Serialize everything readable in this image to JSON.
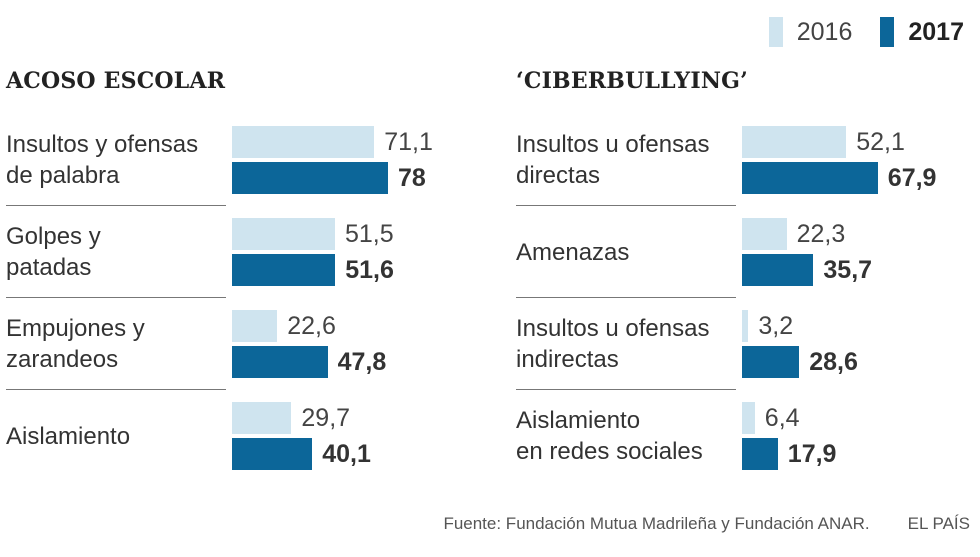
{
  "legend": [
    {
      "label": "2016",
      "color": "#cfe4ef"
    },
    {
      "label": "2017",
      "color": "#0c6699"
    }
  ],
  "chart_data": [
    {
      "type": "bar",
      "orientation": "horizontal",
      "title": "ACOSO ESCOLAR",
      "categories": [
        [
          "Insultos y ofensas",
          "de palabra"
        ],
        [
          "Golpes y",
          "patadas"
        ],
        [
          "Empujones y",
          "zarandeos"
        ],
        [
          "Aislamiento"
        ]
      ],
      "series": [
        {
          "name": "2016",
          "values": [
            71.1,
            51.5,
            22.6,
            29.7
          ],
          "labels": [
            "71,1",
            "51,5",
            "22,6",
            "29,7"
          ],
          "color": "#cfe4ef"
        },
        {
          "name": "2017",
          "values": [
            78,
            51.6,
            47.8,
            40.1
          ],
          "labels": [
            "78",
            "51,6",
            "47,8",
            "40,1"
          ],
          "color": "#0c6699"
        }
      ]
    },
    {
      "type": "bar",
      "orientation": "horizontal",
      "title": "‘CIBERBULLYING’",
      "categories": [
        [
          "Insultos u ofensas",
          "directas"
        ],
        [
          "Amenazas"
        ],
        [
          "Insultos u ofensas",
          "indirectas"
        ],
        [
          "Aislamiento",
          "en redes sociales"
        ]
      ],
      "series": [
        {
          "name": "2016",
          "values": [
            52.1,
            22.3,
            3.2,
            6.4
          ],
          "labels": [
            "52,1",
            "22,3",
            "3,2",
            "6,4"
          ],
          "color": "#cfe4ef"
        },
        {
          "name": "2017",
          "values": [
            67.9,
            35.7,
            28.6,
            17.9
          ],
          "labels": [
            "67,9",
            "35,7",
            "28,6",
            "17,9"
          ],
          "color": "#0c6699"
        }
      ]
    }
  ],
  "footer": {
    "source": "Fuente: Fundación Mutua Madrileña y Fundación ANAR.",
    "brand": "EL PAÍS"
  }
}
